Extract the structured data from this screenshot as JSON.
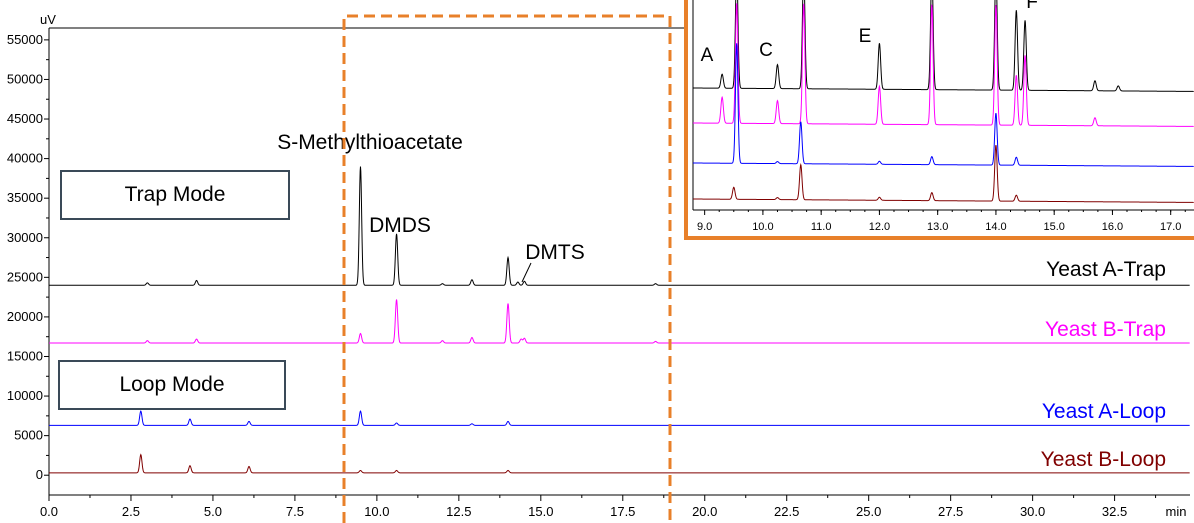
{
  "chart_data": {
    "type": "line",
    "title": "",
    "xlabel": "min",
    "ylabel": "uV",
    "xlim": [
      0,
      34.8
    ],
    "ylim": [
      -2500,
      56500
    ],
    "x_ticks": [
      "0.0",
      "2.5",
      "5.0",
      "7.5",
      "10.0",
      "12.5",
      "15.0",
      "17.5",
      "20.0",
      "22.5",
      "25.0",
      "27.5",
      "30.0",
      "32.5"
    ],
    "y_ticks": [
      "0",
      "5000",
      "10000",
      "15000",
      "20000",
      "25000",
      "30000",
      "35000",
      "40000",
      "45000",
      "50000",
      "55000"
    ],
    "series": [
      {
        "name": "Yeast A-Trap",
        "color": "#000000",
        "baseline": 24000,
        "peaks": [
          [
            3.0,
            300
          ],
          [
            4.5,
            600
          ],
          [
            9.5,
            15000
          ],
          [
            10.6,
            6500
          ],
          [
            12.0,
            200
          ],
          [
            12.9,
            700
          ],
          [
            14.0,
            3500
          ],
          [
            14.3,
            400
          ],
          [
            14.5,
            500
          ],
          [
            18.5,
            200
          ]
        ]
      },
      {
        "name": "Yeast B-Trap",
        "color": "#ff00ff",
        "baseline": 16700,
        "peaks": [
          [
            3.0,
            300
          ],
          [
            4.5,
            500
          ],
          [
            9.5,
            1200
          ],
          [
            10.6,
            5500
          ],
          [
            12.0,
            300
          ],
          [
            12.9,
            700
          ],
          [
            14.0,
            5000
          ],
          [
            14.4,
            500
          ],
          [
            14.5,
            600
          ],
          [
            18.5,
            200
          ]
        ]
      },
      {
        "name": "Yeast A-Loop",
        "color": "#0000ff",
        "baseline": 6300,
        "peaks": [
          [
            2.8,
            1800
          ],
          [
            4.3,
            800
          ],
          [
            6.1,
            500
          ],
          [
            9.5,
            1800
          ],
          [
            10.6,
            300
          ],
          [
            12.9,
            200
          ],
          [
            14.0,
            500
          ]
        ]
      },
      {
        "name": "Yeast B-Loop",
        "color": "#800000",
        "baseline": 300,
        "peaks": [
          [
            2.8,
            2300
          ],
          [
            4.3,
            900
          ],
          [
            6.1,
            800
          ],
          [
            9.5,
            300
          ],
          [
            10.6,
            300
          ],
          [
            14.0,
            300
          ]
        ]
      }
    ],
    "annotations": [
      "S-Methylthioacetate",
      "DMDS",
      "DMTS"
    ],
    "inset": {
      "xlim": [
        8.8,
        17.4
      ],
      "x_ticks": [
        "9.0",
        "10.0",
        "11.0",
        "12.0",
        "13.0",
        "14.0",
        "15.0",
        "16.0",
        "17.0"
      ],
      "peak_labels": [
        "A",
        "C",
        "E",
        "F"
      ],
      "series": [
        {
          "name": "Yeast A-Trap",
          "color": "#000000",
          "peaks": [
            [
              9.3,
              14
            ],
            [
              9.55,
              120
            ],
            [
              10.25,
              24
            ],
            [
              10.7,
              120
            ],
            [
              12.0,
              46
            ],
            [
              12.9,
              120
            ],
            [
              14.0,
              120
            ],
            [
              14.35,
              80
            ],
            [
              14.5,
              70
            ],
            [
              15.7,
              10
            ],
            [
              16.1,
              5
            ]
          ]
        },
        {
          "name": "Yeast B-Trap",
          "color": "#ff00ff",
          "peaks": [
            [
              9.3,
              26
            ],
            [
              9.55,
              120
            ],
            [
              10.25,
              23
            ],
            [
              10.7,
              120
            ],
            [
              12.0,
              38
            ],
            [
              12.9,
              120
            ],
            [
              14.0,
              120
            ],
            [
              14.35,
              50
            ],
            [
              14.5,
              70
            ],
            [
              15.7,
              8
            ]
          ]
        },
        {
          "name": "Yeast A-Loop",
          "color": "#0000ff",
          "peaks": [
            [
              9.55,
              120
            ],
            [
              10.25,
              2
            ],
            [
              10.65,
              42
            ],
            [
              12.0,
              3
            ],
            [
              12.9,
              8
            ],
            [
              14.0,
              52
            ],
            [
              14.35,
              8
            ]
          ]
        },
        {
          "name": "Yeast B-Loop",
          "color": "#800000",
          "peaks": [
            [
              9.5,
              12
            ],
            [
              10.25,
              2
            ],
            [
              10.65,
              35
            ],
            [
              12.0,
              3
            ],
            [
              12.9,
              8
            ],
            [
              14.0,
              56
            ],
            [
              14.35,
              6
            ]
          ]
        }
      ]
    }
  },
  "boxes": {
    "trap_mode": "Trap Mode",
    "loop_mode": "Loop Mode"
  },
  "colors": {
    "highlight": "#e8802a",
    "box_border": "#3a4a58"
  }
}
